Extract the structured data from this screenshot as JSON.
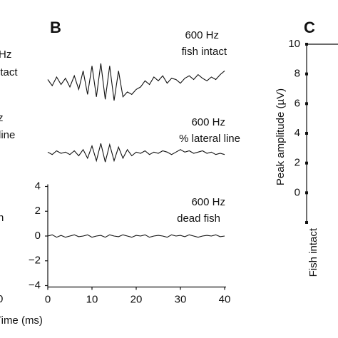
{
  "panel_a": {
    "fragments": [
      "Hz",
      "ntact",
      "z",
      "line",
      "n",
      "0"
    ],
    "xlabel": "Time (ms)"
  },
  "panel_b": {
    "label": "B"
  },
  "panel_c": {
    "label": "C"
  },
  "chart_data": [
    {
      "type": "line",
      "title": [
        "600 Hz",
        "fish intact"
      ],
      "xlim": [
        0,
        40
      ],
      "ylim": [
        -4,
        4
      ],
      "x": [
        0,
        1,
        2,
        3,
        4,
        5,
        6,
        7,
        8,
        9,
        10,
        11,
        12,
        13,
        14,
        15,
        16,
        17,
        18,
        19,
        20,
        21,
        22,
        23,
        24,
        25,
        26,
        27,
        28,
        29,
        30,
        31,
        32,
        33,
        34,
        35,
        36,
        37,
        38,
        39,
        40
      ],
      "series": [
        {
          "color": "#111111",
          "values": [
            0.2,
            -0.3,
            0.4,
            -0.2,
            0.3,
            -0.4,
            0.5,
            -0.6,
            0.9,
            -1.0,
            1.3,
            -1.2,
            1.5,
            -1.4,
            1.3,
            -1.5,
            0.9,
            -1.2,
            -0.8,
            -1.0,
            -0.6,
            -0.4,
            0.1,
            -0.2,
            0.4,
            0.1,
            0.5,
            -0.1,
            0.3,
            0.2,
            -0.1,
            0.3,
            0.5,
            0.2,
            0.6,
            0.3,
            0.1,
            0.4,
            0.2,
            0.6,
            0.9
          ]
        }
      ]
    },
    {
      "type": "line",
      "title": [
        "600 Hz",
        "% lateral line"
      ],
      "xlim": [
        0,
        40
      ],
      "ylim": [
        -4,
        4
      ],
      "x": [
        0,
        1,
        2,
        3,
        4,
        5,
        6,
        7,
        8,
        9,
        10,
        11,
        12,
        13,
        14,
        15,
        16,
        17,
        18,
        19,
        20,
        21,
        22,
        23,
        24,
        25,
        26,
        27,
        28,
        29,
        30,
        31,
        32,
        33,
        34,
        35,
        36,
        37,
        38,
        39,
        40
      ],
      "series": [
        {
          "color": "#111111",
          "values": [
            0.1,
            -0.1,
            0.2,
            0,
            0.1,
            -0.1,
            0.2,
            -0.2,
            0.3,
            -0.4,
            0.6,
            -0.6,
            0.8,
            -0.7,
            0.7,
            -0.6,
            0.5,
            -0.4,
            0.3,
            -0.2,
            0.1,
            0,
            0.2,
            -0.1,
            0.1,
            0,
            0.2,
            0.1,
            -0.1,
            0.1,
            0.3,
            0.1,
            0.2,
            0,
            0.1,
            0.2,
            0,
            0.1,
            -0.1,
            0,
            -0.1
          ]
        }
      ]
    },
    {
      "type": "line",
      "title": [
        "600 Hz",
        "dead fish"
      ],
      "xlim": [
        0,
        40
      ],
      "ylim": [
        -4,
        4
      ],
      "xticks": [
        0,
        10,
        20,
        30,
        40
      ],
      "yticks": [
        {
          "value": -4,
          "label": "−4"
        },
        {
          "value": -2,
          "label": "−2"
        },
        0,
        2,
        4
      ],
      "x": [
        0,
        1,
        2,
        3,
        4,
        5,
        6,
        7,
        8,
        9,
        10,
        11,
        12,
        13,
        14,
        15,
        16,
        17,
        18,
        19,
        20,
        21,
        22,
        23,
        24,
        25,
        26,
        27,
        28,
        29,
        30,
        31,
        32,
        33,
        34,
        35,
        36,
        37,
        38,
        39,
        40
      ],
      "series": [
        {
          "color": "#111111",
          "values": [
            0,
            0.1,
            -0.1,
            0.05,
            -0.1,
            0,
            0.1,
            -0.05,
            0,
            0.1,
            -0.1,
            0,
            0.05,
            -0.1,
            0.1,
            0,
            -0.05,
            0.1,
            0,
            -0.1,
            0.05,
            0,
            0.1,
            -0.1,
            0,
            0.05,
            0,
            -0.1,
            0.1,
            0,
            0.05,
            -0.05,
            0.1,
            0,
            -0.1,
            0,
            0.05,
            0,
            0.1,
            -0.05,
            0
          ]
        }
      ]
    },
    {
      "type": "bar",
      "ylabel": "Peak amplitude (µV)",
      "categories": [
        "Fish intact"
      ],
      "ylim": [
        -2,
        10
      ],
      "yticks": [
        0,
        2,
        4,
        6,
        8,
        10
      ]
    }
  ]
}
